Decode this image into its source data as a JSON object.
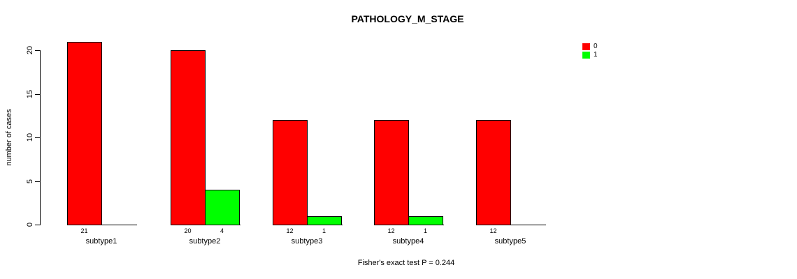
{
  "chart_data": {
    "type": "bar",
    "title": "PATHOLOGY_M_STAGE",
    "ylabel": "number of cases",
    "xlabel": "",
    "footnote": "Fisher's exact test P = 0.244",
    "categories": [
      "subtype1",
      "subtype2",
      "subtype3",
      "subtype4",
      "subtype5"
    ],
    "series": [
      {
        "name": "0",
        "color": "#ff0000",
        "values": [
          21,
          20,
          12,
          12,
          12
        ]
      },
      {
        "name": "1",
        "color": "#00ff00",
        "values": [
          0,
          4,
          1,
          1,
          0
        ]
      }
    ],
    "ylim": [
      0,
      20
    ],
    "yticks": [
      0,
      5,
      10,
      15,
      20
    ],
    "grid": false,
    "legend_position": "right",
    "bar_count_labels_shown": true,
    "zero_value_bars_hidden": true
  }
}
